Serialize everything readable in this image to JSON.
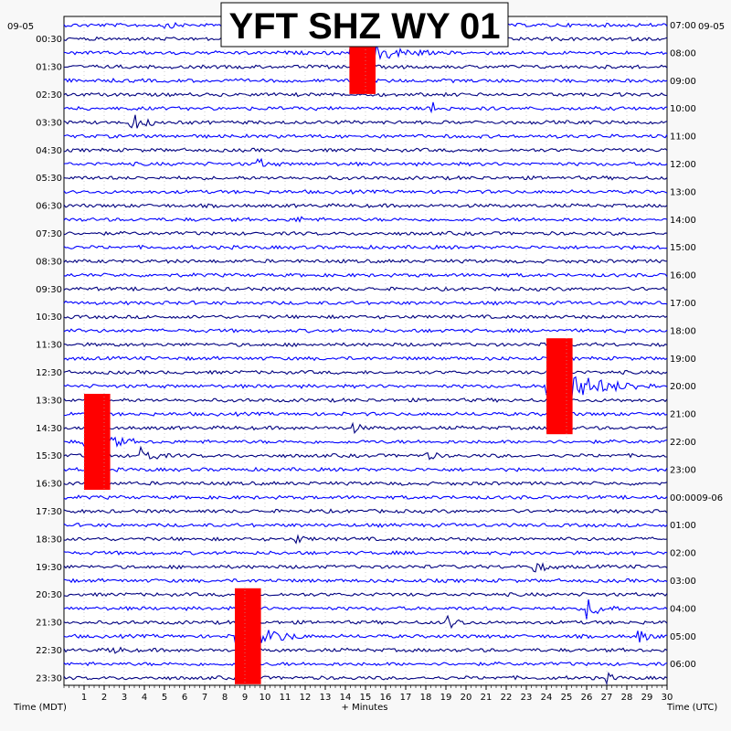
{
  "chart_data": {
    "type": "line",
    "title": "YFT SHZ WY 01",
    "xlabel": "+ Minutes",
    "left_axis_label": "Time (MDT)",
    "right_axis_label": "Time (UTC)",
    "left_date": "09-05",
    "right_date": "09-05",
    "next_day_label": "09-06",
    "x_range_minutes": [
      0,
      30
    ],
    "x_ticks": [
      1,
      2,
      3,
      4,
      5,
      6,
      7,
      8,
      9,
      10,
      11,
      12,
      13,
      14,
      15,
      16,
      17,
      18,
      19,
      20,
      21,
      22,
      23,
      24,
      25,
      26,
      27,
      28,
      29,
      30
    ],
    "row_count": 48,
    "row_duration_minutes": 30,
    "left_time_labels": [
      "00:30",
      "01:30",
      "02:30",
      "03:30",
      "04:30",
      "05:30",
      "06:30",
      "07:30",
      "08:30",
      "09:30",
      "10:30",
      "11:30",
      "12:30",
      "13:30",
      "14:30",
      "15:30",
      "16:30",
      "17:30",
      "18:30",
      "19:30",
      "20:30",
      "21:30",
      "22:30",
      "23:30"
    ],
    "right_time_labels": [
      "07:00",
      "08:00",
      "09:00",
      "10:00",
      "11:00",
      "12:00",
      "13:00",
      "14:00",
      "15:00",
      "16:00",
      "17:00",
      "18:00",
      "19:00",
      "20:00",
      "21:00",
      "22:00",
      "23:00",
      "00:00",
      "01:00",
      "02:00",
      "03:00",
      "04:00",
      "05:00",
      "06:00"
    ],
    "trace_colors": [
      "#0000ff",
      "#000080"
    ],
    "clip_color": "#ff0000",
    "events": [
      {
        "row": 0,
        "minute": 5.0,
        "amplitude": 0.6,
        "duration_minutes": 1.0
      },
      {
        "row": 2,
        "minute": 14.2,
        "amplitude": 3.0,
        "duration_minutes": 4.0,
        "clipped": true
      },
      {
        "row": 6,
        "minute": 18.2,
        "amplitude": 1.4,
        "duration_minutes": 1.3
      },
      {
        "row": 7,
        "minute": 3.2,
        "amplitude": 1.7,
        "duration_minutes": 1.8
      },
      {
        "row": 10,
        "minute": 9.5,
        "amplitude": 1.0,
        "duration_minutes": 1.3
      },
      {
        "row": 14,
        "minute": 11.5,
        "amplitude": 0.6,
        "duration_minutes": 1.0
      },
      {
        "row": 26,
        "minute": 24.0,
        "amplitude": 3.5,
        "duration_minutes": 5.5,
        "clipped": true
      },
      {
        "row": 29,
        "minute": 14.3,
        "amplitude": 0.9,
        "duration_minutes": 1.0
      },
      {
        "row": 30,
        "minute": 1.0,
        "amplitude": 3.5,
        "duration_minutes": 2.5,
        "clipped": true
      },
      {
        "row": 31,
        "minute": 3.8,
        "amplitude": 1.4,
        "duration_minutes": 1.5
      },
      {
        "row": 31,
        "minute": 18.0,
        "amplitude": 0.8,
        "duration_minutes": 1.0
      },
      {
        "row": 37,
        "minute": 11.5,
        "amplitude": 0.7,
        "duration_minutes": 1.0
      },
      {
        "row": 39,
        "minute": 23.2,
        "amplitude": 1.2,
        "duration_minutes": 1.5
      },
      {
        "row": 42,
        "minute": 26.0,
        "amplitude": 1.6,
        "duration_minutes": 1.8
      },
      {
        "row": 43,
        "minute": 19.0,
        "amplitude": 1.1,
        "duration_minutes": 1.5
      },
      {
        "row": 44,
        "minute": 8.5,
        "amplitude": 3.5,
        "duration_minutes": 3.5,
        "clipped": true
      },
      {
        "row": 44,
        "minute": 28.5,
        "amplitude": 1.2,
        "duration_minutes": 1.2
      },
      {
        "row": 45,
        "minute": 2.2,
        "amplitude": 0.9,
        "duration_minutes": 1.2
      },
      {
        "row": 47,
        "minute": 27.0,
        "amplitude": 0.6,
        "duration_minutes": 1.0
      }
    ]
  }
}
